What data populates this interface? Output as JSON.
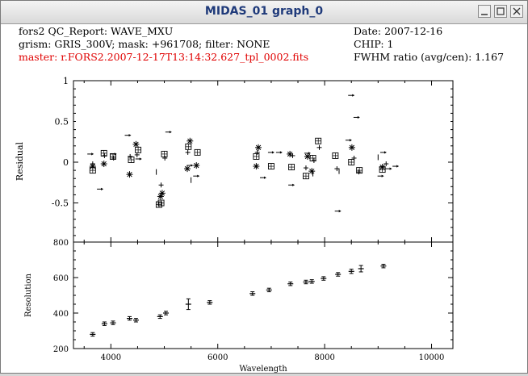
{
  "window": {
    "title": "MIDAS_01 graph_0",
    "buttons": [
      "minimize",
      "maximize",
      "close"
    ]
  },
  "header": {
    "line1": "fors2 QC_Report: WAVE_MXU",
    "line2": "grism: GRIS_300V; mask: +961708; filter: NONE",
    "line3": "master: r.FORS2.2007-12-17T13:14:32.627_tpl_0002.fits",
    "date": "Date: 2007-12-16",
    "chip": "CHIP: 1",
    "fwhm": "FWHM ratio (avg/cen): 1.167",
    "master_color": "#e00000"
  },
  "chart_data": [
    {
      "type": "scatter",
      "title": "",
      "xlabel": "",
      "ylabel": "Residual",
      "xlim": [
        3300,
        10400
      ],
      "ylim": [
        -0.98,
        1
      ],
      "yticks": [
        {
          "v": 1,
          "label": "1"
        },
        {
          "v": 0.5,
          "label": "0.5"
        },
        {
          "v": 0,
          "label": "0"
        },
        {
          "v": -0.5,
          "label": "-0.5"
        }
      ],
      "series": [
        {
          "marker": "arrow",
          "points": [
            [
              3620,
              0.1
            ],
            [
              3800,
              -0.33
            ],
            [
              4050,
              0.1
            ],
            [
              4320,
              0.33
            ],
            [
              4520,
              0.04
            ],
            [
              5080,
              0.37
            ],
            [
              5480,
              -0.04
            ],
            [
              5600,
              -0.17
            ],
            [
              6850,
              -0.19
            ],
            [
              7000,
              0.12
            ],
            [
              7150,
              0.12
            ],
            [
              7380,
              -0.28
            ],
            [
              7680,
              0.11
            ],
            [
              8250,
              -0.6
            ],
            [
              8450,
              0.27
            ],
            [
              8500,
              0.82
            ],
            [
              8600,
              0.55
            ],
            [
              9050,
              -0.17
            ],
            [
              9100,
              0.12
            ],
            [
              9200,
              -0.08
            ],
            [
              9330,
              -0.05
            ]
          ]
        },
        {
          "marker": "square",
          "points": [
            [
              3660,
              -0.1
            ],
            [
              3870,
              0.11
            ],
            [
              4040,
              0.07
            ],
            [
              4380,
              0.03
            ],
            [
              4510,
              0.15
            ],
            [
              4900,
              -0.52
            ],
            [
              4940,
              -0.5
            ],
            [
              5000,
              0.1
            ],
            [
              5450,
              0.19
            ],
            [
              5620,
              0.12
            ],
            [
              6720,
              0.07
            ],
            [
              7000,
              -0.05
            ],
            [
              7380,
              -0.06
            ],
            [
              7650,
              -0.17
            ],
            [
              7780,
              0.05
            ],
            [
              7880,
              0.26
            ],
            [
              8200,
              0.08
            ],
            [
              8500,
              0
            ],
            [
              8650,
              -0.1
            ],
            [
              9080,
              -0.09
            ]
          ]
        },
        {
          "marker": "star",
          "points": [
            [
              3660,
              -0.05
            ],
            [
              3870,
              -0.02
            ],
            [
              4350,
              -0.15
            ],
            [
              4470,
              0.22
            ],
            [
              4930,
              -0.42
            ],
            [
              4960,
              -0.38
            ],
            [
              5430,
              -0.08
            ],
            [
              5480,
              0.26
            ],
            [
              5600,
              -0.04
            ],
            [
              6720,
              -0.05
            ],
            [
              6760,
              0.18
            ],
            [
              7350,
              0.1
            ],
            [
              7680,
              0.07
            ],
            [
              7760,
              -0.11
            ],
            [
              8510,
              0.18
            ],
            [
              9080,
              -0.06
            ]
          ]
        },
        {
          "marker": "cross",
          "points": [
            [
              3660,
              -0.02
            ],
            [
              3880,
              0.08
            ],
            [
              4050,
              0.05
            ],
            [
              4360,
              0.07
            ],
            [
              4490,
              0.09
            ],
            [
              4940,
              -0.28
            ],
            [
              5010,
              0.05
            ],
            [
              5440,
              0.12
            ],
            [
              6740,
              0.12
            ],
            [
              7400,
              0.08
            ],
            [
              7650,
              -0.07
            ],
            [
              7800,
              0.02
            ],
            [
              7900,
              0.18
            ],
            [
              8230,
              -0.08
            ],
            [
              8550,
              0.05
            ],
            [
              8640,
              -0.12
            ],
            [
              9150,
              -0.02
            ]
          ]
        },
        {
          "marker": "tick",
          "points": [
            [
              4850,
              -0.12
            ],
            [
              5500,
              -0.22
            ],
            [
              7780,
              -0.14
            ],
            [
              8270,
              -0.11
            ],
            [
              9000,
              0.06
            ]
          ]
        }
      ]
    },
    {
      "type": "scatter",
      "title": "",
      "xlabel": "Wavelength",
      "ylabel": "Resolution",
      "xlim": [
        3300,
        10400
      ],
      "ylim": [
        200,
        800
      ],
      "yticks": [
        {
          "v": 800,
          "label": "800"
        },
        {
          "v": 600,
          "label": "600"
        },
        {
          "v": 400,
          "label": "400"
        },
        {
          "v": 200,
          "label": "200"
        }
      ],
      "xticks": [
        {
          "v": 4000,
          "label": "4000"
        },
        {
          "v": 6000,
          "label": "6000"
        },
        {
          "v": 8000,
          "label": "8000"
        },
        {
          "v": 10000,
          "label": "10000"
        }
      ],
      "points": [
        {
          "x": 3660,
          "y": 280,
          "err": 10
        },
        {
          "x": 3880,
          "y": 340,
          "err": 10
        },
        {
          "x": 4040,
          "y": 345,
          "err": 10
        },
        {
          "x": 4350,
          "y": 370,
          "err": 10
        },
        {
          "x": 4470,
          "y": 360,
          "err": 10
        },
        {
          "x": 4920,
          "y": 380,
          "err": 10
        },
        {
          "x": 5030,
          "y": 400,
          "err": 10
        },
        {
          "x": 5450,
          "y": 450,
          "err": 30
        },
        {
          "x": 5850,
          "y": 460,
          "err": 10
        },
        {
          "x": 6650,
          "y": 510,
          "err": 10
        },
        {
          "x": 6960,
          "y": 530,
          "err": 10
        },
        {
          "x": 7360,
          "y": 565,
          "err": 10
        },
        {
          "x": 7650,
          "y": 575,
          "err": 10
        },
        {
          "x": 7760,
          "y": 578,
          "err": 10
        },
        {
          "x": 7980,
          "y": 595,
          "err": 10
        },
        {
          "x": 8250,
          "y": 618,
          "err": 10
        },
        {
          "x": 8500,
          "y": 635,
          "err": 12
        },
        {
          "x": 8680,
          "y": 650,
          "err": 18
        },
        {
          "x": 9100,
          "y": 665,
          "err": 10
        }
      ]
    }
  ]
}
